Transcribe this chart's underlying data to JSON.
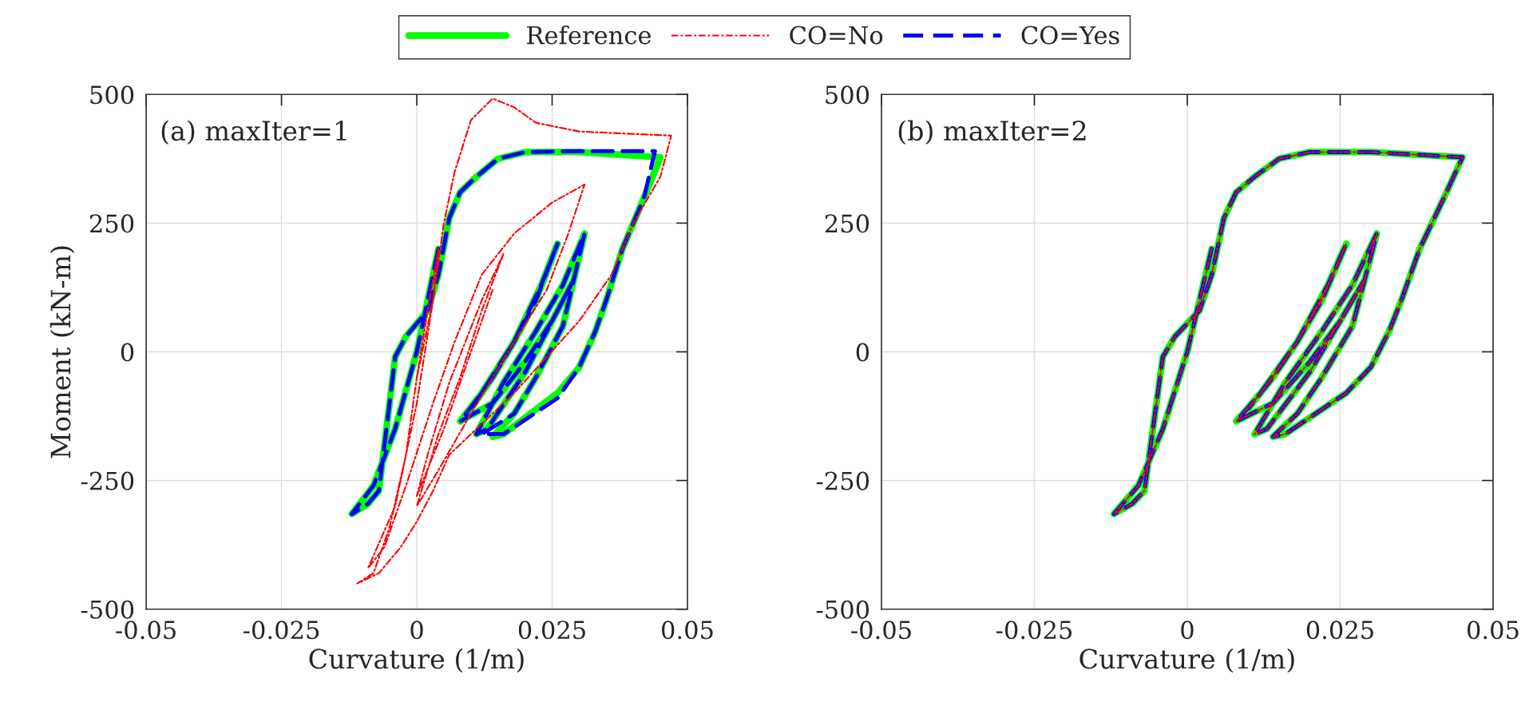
{
  "chart_data": [
    {
      "type": "line",
      "xlabel": "Curvature (1/m)",
      "ylabel": "Moment (kN-m)",
      "annotations": [
        "(a) maxIter=1"
      ],
      "xlim": [
        -0.05,
        0.05
      ],
      "xticks": [
        -0.05,
        -0.025,
        0,
        0.025,
        0.05
      ],
      "ylim": [
        -500,
        500
      ],
      "yticks": [
        -500,
        -250,
        0,
        250,
        500
      ],
      "grid": true,
      "legend": "top",
      "series": [
        {
          "name": "Reference",
          "color": "#00ff00",
          "line_style": "solid",
          "x": [
            0.004,
            0.002,
            0.0,
            -0.004,
            -0.008,
            -0.012,
            -0.009,
            -0.007,
            -0.004,
            -0.002,
            0.002,
            0.004,
            0.006,
            0.008,
            0.011,
            0.015,
            0.02,
            0.03,
            0.045,
            0.042,
            0.038,
            0.035,
            0.033,
            0.03,
            0.026,
            0.021,
            0.016,
            0.014,
            0.018,
            0.022,
            0.027,
            0.031,
            0.027,
            0.022,
            0.016,
            0.011,
            0.013,
            0.02,
            0.026,
            0.029,
            0.025,
            0.02,
            0.014,
            0.008,
            0.012,
            0.018,
            0.023,
            0.026,
            0.022,
            0.018,
            0.014,
            0.01
          ],
          "values": [
            200,
            100,
            0,
            -150,
            -260,
            -315,
            -295,
            -270,
            -10,
            30,
            80,
            150,
            260,
            310,
            340,
            375,
            388,
            388,
            378,
            300,
            200,
            100,
            40,
            -30,
            -80,
            -120,
            -160,
            -165,
            -120,
            -50,
            50,
            230,
            130,
            40,
            -60,
            -160,
            -150,
            -40,
            80,
            140,
            60,
            -20,
            -100,
            -135,
            -80,
            20,
            130,
            210,
            100,
            20,
            -50,
            -110
          ]
        },
        {
          "name": "CO=No",
          "color": "#ff0000",
          "line_style": "dashdot",
          "x": [
            0.0,
            0.003,
            0.005,
            0.007,
            0.01,
            0.014,
            0.018,
            0.022,
            0.03,
            0.047,
            0.045,
            0.04,
            0.036,
            0.03,
            0.024,
            0.018,
            0.012,
            0.006,
            0.003,
            0.0,
            -0.003,
            -0.007,
            -0.011,
            -0.008,
            -0.005,
            -0.002,
            0.0,
            0.002,
            0.004,
            0.003,
            0.0,
            -0.004,
            -0.009,
            -0.006,
            -0.002,
            0.003,
            0.007,
            0.012,
            0.018,
            0.025,
            0.031,
            0.028,
            0.024,
            0.018,
            0.01,
            0.004,
            0.0,
            0.004,
            0.008,
            0.012,
            0.016,
            0.012,
            0.006,
            0.002,
            0.0,
            0.005,
            0.01,
            0.014
          ],
          "values": [
            -50,
            100,
            250,
            350,
            450,
            492,
            475,
            445,
            428,
            420,
            340,
            250,
            150,
            60,
            -10,
            -80,
            -140,
            -200,
            -270,
            -330,
            -380,
            -430,
            -450,
            -430,
            -340,
            -200,
            -50,
            80,
            200,
            100,
            -100,
            -300,
            -420,
            -380,
            -260,
            -100,
            20,
            150,
            230,
            290,
            325,
            230,
            120,
            20,
            -120,
            -230,
            -300,
            -160,
            -50,
            80,
            190,
            100,
            -60,
            -200,
            -280,
            -150,
            0,
            120
          ]
        },
        {
          "name": "CO=Yes",
          "color": "#0000ff",
          "line_style": "dashed",
          "x": [
            0.004,
            0.002,
            0.0,
            -0.004,
            -0.008,
            -0.012,
            -0.009,
            -0.007,
            -0.004,
            -0.002,
            0.002,
            0.004,
            0.006,
            0.008,
            0.011,
            0.015,
            0.02,
            0.03,
            0.044,
            0.042,
            0.038,
            0.035,
            0.033,
            0.03,
            0.026,
            0.021,
            0.016,
            0.012,
            0.018,
            0.022,
            0.027,
            0.031,
            0.027,
            0.022,
            0.016,
            0.011,
            0.013,
            0.02,
            0.026,
            0.029,
            0.025,
            0.02,
            0.014,
            0.008,
            0.012,
            0.018,
            0.023,
            0.026,
            0.022,
            0.018,
            0.014,
            0.01
          ],
          "values": [
            200,
            100,
            0,
            -150,
            -260,
            -315,
            -295,
            -270,
            -10,
            30,
            80,
            150,
            260,
            310,
            340,
            375,
            388,
            390,
            390,
            300,
            200,
            100,
            40,
            -30,
            -90,
            -125,
            -160,
            -160,
            -120,
            -50,
            50,
            230,
            130,
            40,
            -60,
            -160,
            -150,
            -40,
            80,
            140,
            60,
            -20,
            -100,
            -135,
            -80,
            20,
            130,
            210,
            100,
            20,
            -50,
            -110
          ]
        }
      ]
    },
    {
      "type": "line",
      "xlabel": "Curvature (1/m)",
      "annotations": [
        "(b) maxIter=2"
      ],
      "xlim": [
        -0.05,
        0.05
      ],
      "xticks": [
        -0.05,
        -0.025,
        0,
        0.025,
        0.05
      ],
      "ylim": [
        -500,
        500
      ],
      "yticks": [
        -500,
        -250,
        0,
        250,
        500
      ],
      "grid": true,
      "legend": "top",
      "series": [
        {
          "name": "Reference",
          "color": "#00ff00",
          "line_style": "solid",
          "x": [
            0.004,
            0.002,
            0.0,
            -0.004,
            -0.008,
            -0.012,
            -0.009,
            -0.007,
            -0.004,
            -0.002,
            0.002,
            0.004,
            0.006,
            0.008,
            0.011,
            0.015,
            0.02,
            0.03,
            0.045,
            0.042,
            0.038,
            0.035,
            0.033,
            0.03,
            0.026,
            0.021,
            0.016,
            0.014,
            0.018,
            0.022,
            0.027,
            0.031,
            0.027,
            0.022,
            0.016,
            0.011,
            0.013,
            0.02,
            0.026,
            0.029,
            0.025,
            0.02,
            0.014,
            0.008,
            0.012,
            0.018,
            0.023,
            0.026,
            0.022,
            0.018,
            0.014,
            0.01
          ],
          "values": [
            200,
            100,
            0,
            -150,
            -260,
            -315,
            -295,
            -270,
            -10,
            30,
            80,
            150,
            260,
            310,
            340,
            375,
            388,
            388,
            378,
            300,
            200,
            100,
            40,
            -30,
            -80,
            -120,
            -160,
            -165,
            -120,
            -50,
            50,
            230,
            130,
            40,
            -60,
            -160,
            -150,
            -40,
            80,
            140,
            60,
            -20,
            -100,
            -135,
            -80,
            20,
            130,
            210,
            100,
            20,
            -50,
            -110
          ]
        },
        {
          "name": "CO=No",
          "color": "#ff0000",
          "line_style": "dashdot",
          "x": [
            0.004,
            0.002,
            0.0,
            -0.004,
            -0.008,
            -0.012,
            -0.009,
            -0.007,
            -0.004,
            -0.002,
            0.002,
            0.004,
            0.006,
            0.008,
            0.011,
            0.015,
            0.02,
            0.03,
            0.045,
            0.042,
            0.038,
            0.035,
            0.033,
            0.03,
            0.026,
            0.021,
            0.016,
            0.014,
            0.018,
            0.022,
            0.027,
            0.031,
            0.027,
            0.022,
            0.016,
            0.011,
            0.013,
            0.02,
            0.026,
            0.029,
            0.025,
            0.02,
            0.014,
            0.008,
            0.012,
            0.018,
            0.023,
            0.026,
            0.022,
            0.018,
            0.014,
            0.01
          ],
          "values": [
            200,
            100,
            0,
            -150,
            -260,
            -315,
            -295,
            -270,
            -10,
            30,
            80,
            150,
            260,
            310,
            340,
            375,
            388,
            388,
            378,
            300,
            200,
            100,
            40,
            -30,
            -80,
            -120,
            -160,
            -165,
            -120,
            -50,
            50,
            230,
            130,
            40,
            -60,
            -160,
            -150,
            -40,
            80,
            140,
            60,
            -20,
            -100,
            -135,
            -80,
            20,
            130,
            210,
            100,
            20,
            -50,
            -110
          ]
        },
        {
          "name": "CO=Yes",
          "color": "#0000ff",
          "line_style": "dashed",
          "x": [
            0.004,
            0.002,
            0.0,
            -0.004,
            -0.008,
            -0.012,
            -0.009,
            -0.007,
            -0.004,
            -0.002,
            0.002,
            0.004,
            0.006,
            0.008,
            0.011,
            0.015,
            0.02,
            0.03,
            0.045,
            0.042,
            0.038,
            0.035,
            0.033,
            0.03,
            0.026,
            0.021,
            0.016,
            0.014,
            0.018,
            0.022,
            0.027,
            0.031,
            0.027,
            0.022,
            0.016,
            0.011,
            0.013,
            0.02,
            0.026,
            0.029,
            0.025,
            0.02,
            0.014,
            0.008,
            0.012,
            0.018,
            0.023,
            0.026,
            0.022,
            0.018,
            0.014,
            0.01
          ],
          "values": [
            200,
            100,
            0,
            -150,
            -260,
            -315,
            -295,
            -270,
            -10,
            30,
            80,
            150,
            260,
            310,
            340,
            375,
            388,
            388,
            378,
            300,
            200,
            100,
            40,
            -30,
            -80,
            -120,
            -160,
            -165,
            -120,
            -50,
            50,
            230,
            130,
            40,
            -60,
            -160,
            -150,
            -40,
            80,
            140,
            60,
            -20,
            -100,
            -135,
            -80,
            20,
            130,
            210,
            100,
            20,
            -50,
            -110
          ]
        }
      ]
    }
  ]
}
